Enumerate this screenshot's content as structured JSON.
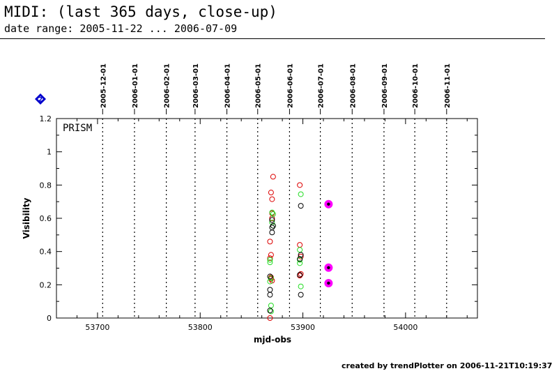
{
  "header": {
    "title": "MIDI: (last 365 days, close-up)",
    "subtitle": "date range: 2005-11-22 ... 2006-07-09"
  },
  "footer": {
    "credit": "created by trendPlotter on 2006-11-21T10:19:37"
  },
  "chart_data": {
    "type": "scatter",
    "title": "",
    "xlabel": "mjd-obs",
    "ylabel": "Visibility",
    "panel_label": "PRISM",
    "flag_badge": "2",
    "xlim": [
      53660,
      54070
    ],
    "ylim": [
      0,
      1.2
    ],
    "x_ticks": [
      53700,
      53800,
      53900,
      54000
    ],
    "y_ticks": [
      0,
      0.2,
      0.4,
      0.6,
      0.8,
      1,
      1.2
    ],
    "y_tick_labels": [
      "0",
      "0.2",
      "0.4",
      "0.6",
      "0.8",
      "1",
      "1.2"
    ],
    "grid": false,
    "month_markers": [
      {
        "label": "2005-12-01",
        "mjd": 53705
      },
      {
        "label": "2006-01-01",
        "mjd": 53736
      },
      {
        "label": "2006-02-01",
        "mjd": 53767
      },
      {
        "label": "2006-03-01",
        "mjd": 53795
      },
      {
        "label": "2006-04-01",
        "mjd": 53826
      },
      {
        "label": "2006-05-01",
        "mjd": 53856
      },
      {
        "label": "2006-06-01",
        "mjd": 53887
      },
      {
        "label": "2006-07-01",
        "mjd": 53917
      },
      {
        "label": "2006-08-01",
        "mjd": 53948
      },
      {
        "label": "2006-09-01",
        "mjd": 53979
      },
      {
        "label": "2006-10-01",
        "mjd": 54009
      },
      {
        "label": "2006-11-01",
        "mjd": 54040
      }
    ],
    "colors": {
      "red": "#dd0000",
      "green": "#22dd22",
      "black": "#000000",
      "magenta": "#ff00ff",
      "badge": "#0000cc"
    },
    "series": [
      {
        "color": "red",
        "style": "open-circle",
        "x": [
          53871,
          53869,
          53870,
          53870,
          53870,
          53868,
          53869,
          53868,
          53869,
          53869,
          53870,
          53897,
          53897,
          53898,
          53898,
          53897,
          53868
        ],
        "y": [
          0.85,
          0.755,
          0.715,
          0.63,
          0.6,
          0.46,
          0.38,
          0.36,
          0.245,
          0.235,
          0.225,
          0.8,
          0.44,
          0.37,
          0.265,
          0.255,
          0.0
        ]
      },
      {
        "color": "green",
        "style": "open-circle",
        "x": [
          53870,
          53871,
          53870,
          53871,
          53868,
          53868,
          53869,
          53868,
          53869,
          53869,
          53898,
          53897,
          53897,
          53897,
          53898
        ],
        "y": [
          0.635,
          0.625,
          0.575,
          0.555,
          0.35,
          0.335,
          0.24,
          0.22,
          0.075,
          0.04,
          0.745,
          0.41,
          0.35,
          0.33,
          0.19
        ]
      },
      {
        "color": "black",
        "style": "open-circle",
        "x": [
          53870,
          53871,
          53870,
          53870,
          53868,
          53868,
          53868,
          53868,
          53898,
          53898,
          53897,
          53897,
          53898
        ],
        "y": [
          0.59,
          0.555,
          0.545,
          0.515,
          0.25,
          0.17,
          0.14,
          0.045,
          0.675,
          0.38,
          0.355,
          0.26,
          0.14
        ]
      },
      {
        "color": "magenta",
        "style": "filled-marker",
        "x": [
          53925,
          53925,
          53925
        ],
        "y": [
          0.685,
          0.303,
          0.21
        ]
      }
    ]
  }
}
